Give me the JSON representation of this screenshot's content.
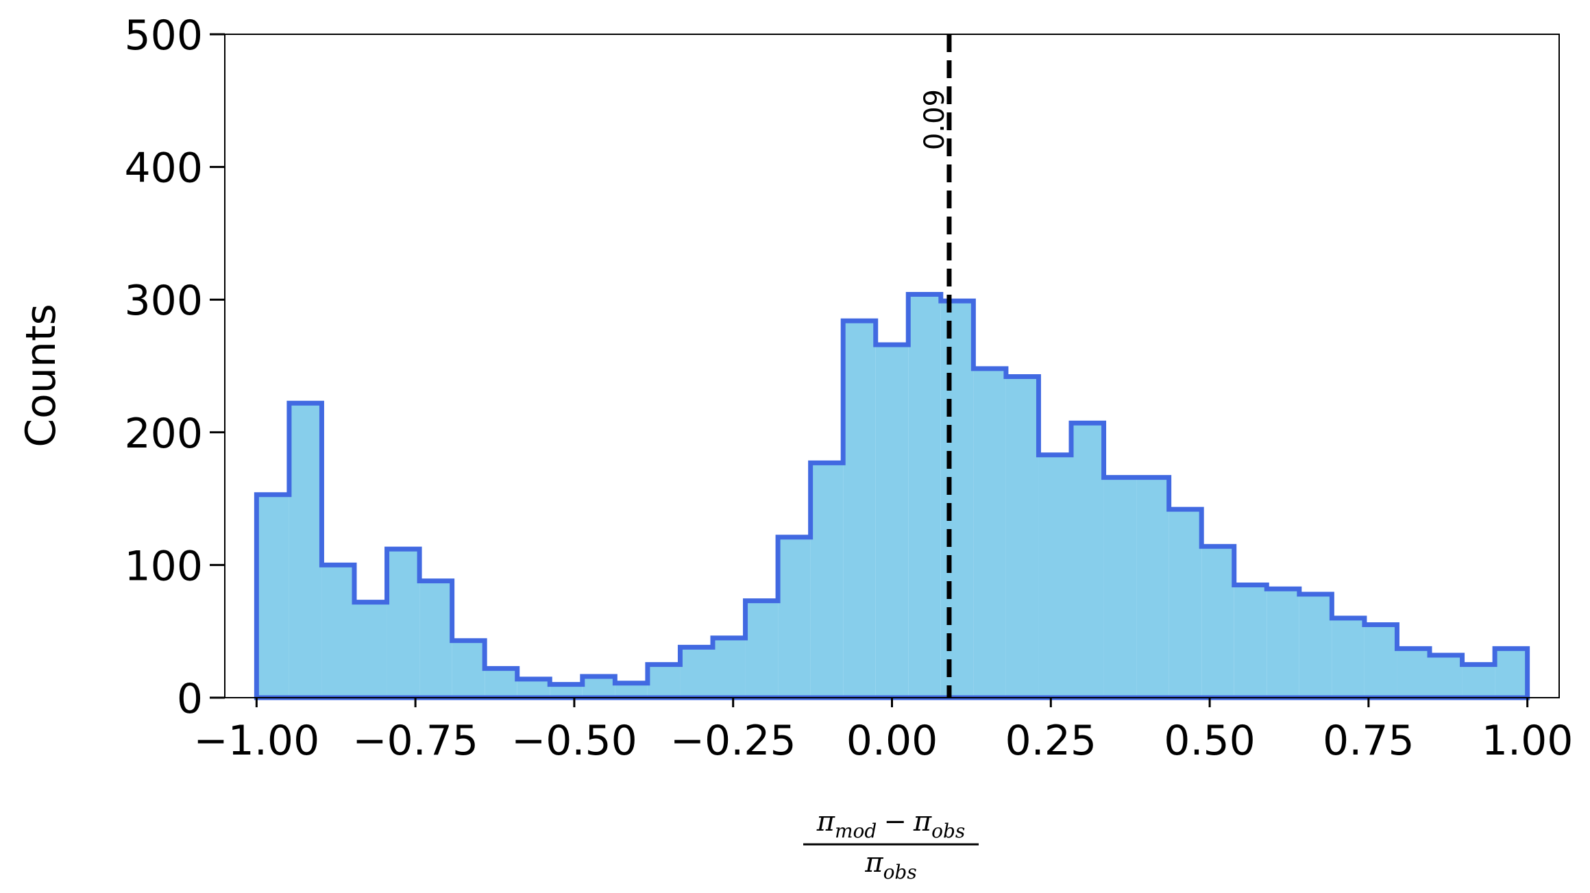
{
  "chart_data": {
    "type": "histogram",
    "title": "",
    "ylabel": "Counts",
    "xlabel": {
      "numerator": {
        "a": "π",
        "a_sub": "mod",
        "op": "−",
        "b": "π",
        "b_sub": "obs"
      },
      "denominator": {
        "a": "π",
        "a_sub": "obs"
      }
    },
    "xlim": [
      -1.05,
      1.05
    ],
    "ylim": [
      0,
      500
    ],
    "xticks": [
      -1.0,
      -0.75,
      -0.5,
      -0.25,
      0.0,
      0.25,
      0.5,
      0.75,
      1.0
    ],
    "xtick_labels": [
      "−1.00",
      "−0.75",
      "−0.50",
      "−0.25",
      "0.00",
      "0.25",
      "0.50",
      "0.75",
      "1.00"
    ],
    "yticks": [
      0,
      100,
      200,
      300,
      400,
      500
    ],
    "ytick_labels": [
      "0",
      "100",
      "200",
      "300",
      "400",
      "500"
    ],
    "bins": {
      "start": -1.0,
      "end": 1.0,
      "counts": [
        153,
        222,
        100,
        72,
        112,
        88,
        43,
        22,
        14,
        10,
        16,
        11,
        25,
        38,
        45,
        73,
        121,
        177,
        284,
        266,
        304,
        299,
        248,
        242,
        183,
        207,
        166,
        166,
        142,
        114,
        85,
        82,
        78,
        60,
        55,
        37,
        32,
        25,
        37
      ]
    },
    "reference_line": {
      "x": 0.09,
      "label": "0.09",
      "style": "dashed",
      "color": "#000000"
    },
    "colors": {
      "fill": "#87ceeb",
      "edge": "#4169e1"
    },
    "grid": false,
    "legend": "none"
  }
}
